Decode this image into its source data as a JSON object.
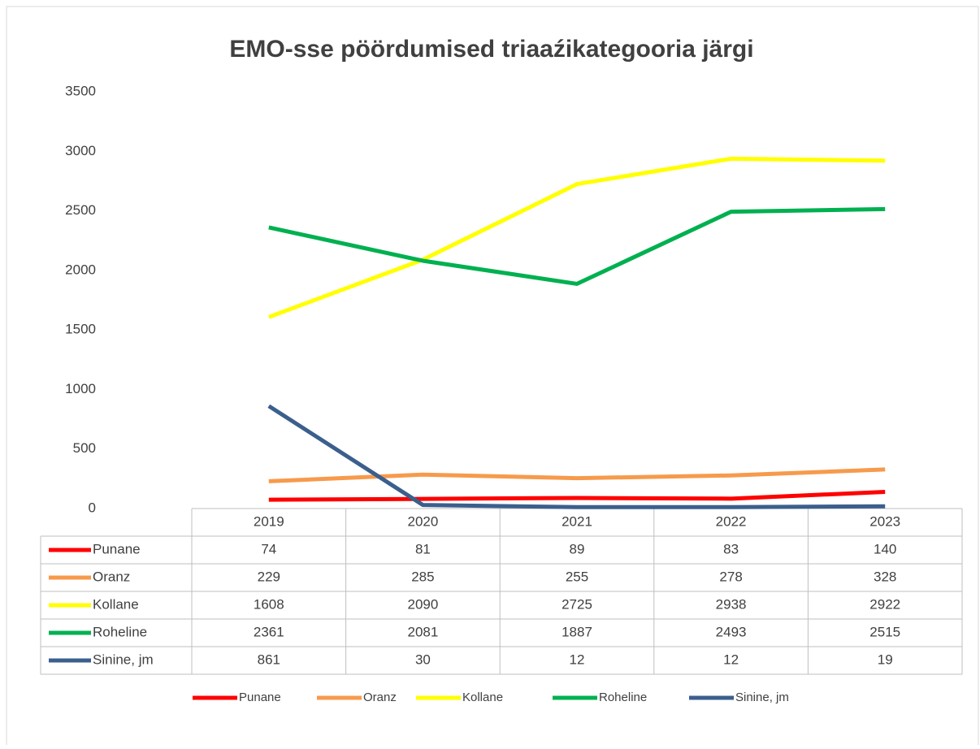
{
  "chart_data": {
    "type": "line",
    "title": "EMO-sse pöördumised triaaźikategooria järgi",
    "categories": [
      "2019",
      "2020",
      "2021",
      "2022",
      "2023"
    ],
    "series": [
      {
        "name": "Punane",
        "color": "#ff0000",
        "values": [
          74,
          81,
          89,
          83,
          140
        ]
      },
      {
        "name": "Oranz",
        "color": "#f79a4c",
        "values": [
          229,
          285,
          255,
          278,
          328
        ]
      },
      {
        "name": "Kollane",
        "color": "#ffff00",
        "values": [
          1608,
          2090,
          2725,
          2938,
          2922
        ]
      },
      {
        "name": "Roheline",
        "color": "#00b050",
        "values": [
          2361,
          2081,
          1887,
          2493,
          2515
        ]
      },
      {
        "name": "Sinine, jm",
        "color": "#3b5f8d",
        "values": [
          861,
          30,
          12,
          12,
          19
        ]
      }
    ],
    "ylim": [
      0,
      3500
    ],
    "yticks": [
      0,
      500,
      1000,
      1500,
      2000,
      2500,
      3000,
      3500
    ],
    "grid": false,
    "legend": "bottom",
    "data_table": true
  }
}
